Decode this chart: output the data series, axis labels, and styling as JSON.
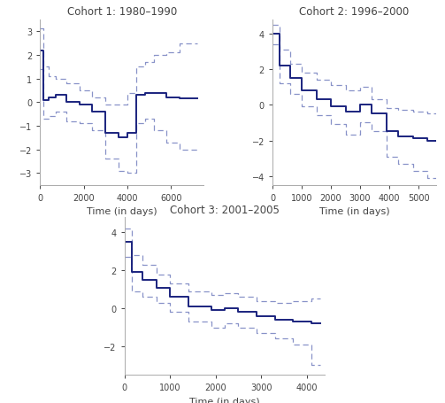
{
  "title_color": "#444444",
  "line_color_mean": "#1a237e",
  "line_color_ci": "#8892c8",
  "background_color": "#ffffff",
  "panels": [
    {
      "title": "Cohort 1: 1980–1990",
      "xlabel": "Time (in days)",
      "ylim": [
        -3.5,
        3.5
      ],
      "yticks": [
        -3,
        -2,
        -1,
        0,
        1,
        2,
        3
      ],
      "xlim": [
        0,
        7500
      ],
      "xticks": [
        0,
        2000,
        4000,
        6000
      ],
      "mean_x": [
        0,
        150,
        150,
        400,
        400,
        700,
        700,
        1200,
        1200,
        1800,
        1800,
        2400,
        2400,
        3000,
        3000,
        3600,
        3600,
        4000,
        4000,
        4400,
        4400,
        4800,
        4800,
        5200,
        5200,
        5800,
        5800,
        6400,
        6400,
        7200
      ],
      "mean_y": [
        2.2,
        2.2,
        0.1,
        0.1,
        0.2,
        0.2,
        0.3,
        0.3,
        0.0,
        0.0,
        -0.1,
        -0.1,
        -0.4,
        -0.4,
        -1.3,
        -1.3,
        -1.5,
        -1.5,
        -1.3,
        -1.3,
        0.3,
        0.3,
        0.4,
        0.4,
        0.4,
        0.4,
        0.2,
        0.2,
        0.15,
        0.15
      ],
      "upper_x": [
        0,
        150,
        150,
        400,
        400,
        700,
        700,
        1200,
        1200,
        1800,
        1800,
        2400,
        2400,
        3000,
        3000,
        3600,
        3600,
        4000,
        4000,
        4400,
        4400,
        4800,
        4800,
        5200,
        5200,
        5800,
        5800,
        6400,
        6400,
        7200
      ],
      "upper_y": [
        3.1,
        3.1,
        1.5,
        1.5,
        1.1,
        1.1,
        1.0,
        1.0,
        0.8,
        0.8,
        0.5,
        0.5,
        0.2,
        0.2,
        -0.1,
        -0.1,
        -0.1,
        -0.1,
        0.4,
        0.4,
        1.5,
        1.5,
        1.7,
        1.7,
        2.0,
        2.0,
        2.1,
        2.1,
        2.5,
        2.5
      ],
      "lower_x": [
        0,
        150,
        150,
        400,
        400,
        700,
        700,
        1200,
        1200,
        1800,
        1800,
        2400,
        2400,
        3000,
        3000,
        3600,
        3600,
        4000,
        4000,
        4400,
        4400,
        4800,
        4800,
        5200,
        5200,
        5800,
        5800,
        6400,
        6400,
        7200
      ],
      "lower_y": [
        1.4,
        1.4,
        -0.7,
        -0.7,
        -0.6,
        -0.6,
        -0.4,
        -0.4,
        -0.8,
        -0.8,
        -0.9,
        -0.9,
        -1.2,
        -1.2,
        -2.4,
        -2.4,
        -2.9,
        -2.9,
        -3.0,
        -3.0,
        -0.9,
        -0.9,
        -0.7,
        -0.7,
        -1.2,
        -1.2,
        -1.7,
        -1.7,
        -2.0,
        -2.0
      ]
    },
    {
      "title": "Cohort 2: 1996–2000",
      "xlabel": "Time (in days)",
      "ylim": [
        -4.5,
        4.8
      ],
      "yticks": [
        -4,
        -2,
        0,
        2,
        4
      ],
      "xlim": [
        0,
        5600
      ],
      "xticks": [
        0,
        1000,
        2000,
        3000,
        4000,
        5000
      ],
      "mean_x": [
        0,
        250,
        250,
        600,
        600,
        1000,
        1000,
        1500,
        1500,
        2000,
        2000,
        2500,
        2500,
        3000,
        3000,
        3400,
        3400,
        3900,
        3900,
        4300,
        4300,
        4800,
        4800,
        5300,
        5300,
        5600
      ],
      "mean_y": [
        4.0,
        4.0,
        2.2,
        2.2,
        1.5,
        1.5,
        0.8,
        0.8,
        0.3,
        0.3,
        -0.1,
        -0.1,
        -0.4,
        -0.4,
        0.0,
        0.0,
        -0.5,
        -0.5,
        -1.5,
        -1.5,
        -1.8,
        -1.8,
        -1.9,
        -1.9,
        -2.0,
        -2.0
      ],
      "upper_x": [
        0,
        250,
        250,
        600,
        600,
        1000,
        1000,
        1500,
        1500,
        2000,
        2000,
        2500,
        2500,
        3000,
        3000,
        3400,
        3400,
        3900,
        3900,
        4300,
        4300,
        4800,
        4800,
        5300,
        5300,
        5600
      ],
      "upper_y": [
        4.5,
        4.5,
        3.1,
        3.1,
        2.3,
        2.3,
        1.8,
        1.8,
        1.4,
        1.4,
        1.1,
        1.1,
        0.8,
        0.8,
        1.0,
        1.0,
        0.3,
        0.3,
        -0.2,
        -0.2,
        -0.3,
        -0.3,
        -0.4,
        -0.4,
        -0.5,
        -0.5
      ],
      "lower_x": [
        0,
        250,
        250,
        600,
        600,
        1000,
        1000,
        1500,
        1500,
        2000,
        2000,
        2500,
        2500,
        3000,
        3000,
        3400,
        3400,
        3900,
        3900,
        4300,
        4300,
        4800,
        4800,
        5300,
        5300,
        5600
      ],
      "lower_y": [
        3.4,
        3.4,
        1.2,
        1.2,
        0.6,
        0.6,
        -0.1,
        -0.1,
        -0.6,
        -0.6,
        -1.1,
        -1.1,
        -1.7,
        -1.7,
        -1.0,
        -1.0,
        -1.5,
        -1.5,
        -2.9,
        -2.9,
        -3.3,
        -3.3,
        -3.7,
        -3.7,
        -4.1,
        -4.1
      ]
    },
    {
      "title": "Cohort 3: 2001–2005",
      "xlabel": "Time (in days)",
      "ylim": [
        -3.5,
        4.8
      ],
      "yticks": [
        -2,
        0,
        2,
        4
      ],
      "xlim": [
        0,
        4400
      ],
      "xticks": [
        0,
        1000,
        2000,
        3000,
        4000
      ],
      "mean_x": [
        0,
        150,
        150,
        400,
        400,
        700,
        700,
        1000,
        1000,
        1400,
        1400,
        1900,
        1900,
        2200,
        2200,
        2500,
        2500,
        2900,
        2900,
        3300,
        3300,
        3700,
        3700,
        4100,
        4100,
        4300
      ],
      "mean_y": [
        3.5,
        3.5,
        1.9,
        1.9,
        1.5,
        1.5,
        1.1,
        1.1,
        0.6,
        0.6,
        0.1,
        0.1,
        -0.1,
        -0.1,
        0.0,
        0.0,
        -0.2,
        -0.2,
        -0.4,
        -0.4,
        -0.6,
        -0.6,
        -0.7,
        -0.7,
        -0.8,
        -0.8
      ],
      "upper_x": [
        0,
        150,
        150,
        400,
        400,
        700,
        700,
        1000,
        1000,
        1400,
        1400,
        1900,
        1900,
        2200,
        2200,
        2500,
        2500,
        2900,
        2900,
        3300,
        3300,
        3700,
        3700,
        4100,
        4100,
        4300
      ],
      "upper_y": [
        4.2,
        4.2,
        2.8,
        2.8,
        2.3,
        2.3,
        1.8,
        1.8,
        1.3,
        1.3,
        0.9,
        0.9,
        0.7,
        0.7,
        0.8,
        0.8,
        0.6,
        0.6,
        0.4,
        0.4,
        0.3,
        0.3,
        0.4,
        0.4,
        0.5,
        0.5
      ],
      "lower_x": [
        0,
        150,
        150,
        400,
        400,
        700,
        700,
        1000,
        1000,
        1400,
        1400,
        1900,
        1900,
        2200,
        2200,
        2500,
        2500,
        2900,
        2900,
        3300,
        3300,
        3700,
        3700,
        4100,
        4100,
        4300
      ],
      "lower_y": [
        2.7,
        2.7,
        0.9,
        0.9,
        0.6,
        0.6,
        0.3,
        0.3,
        -0.2,
        -0.2,
        -0.7,
        -0.7,
        -1.0,
        -1.0,
        -0.8,
        -0.8,
        -1.0,
        -1.0,
        -1.3,
        -1.3,
        -1.6,
        -1.6,
        -1.9,
        -1.9,
        -3.0,
        -3.0
      ]
    }
  ]
}
